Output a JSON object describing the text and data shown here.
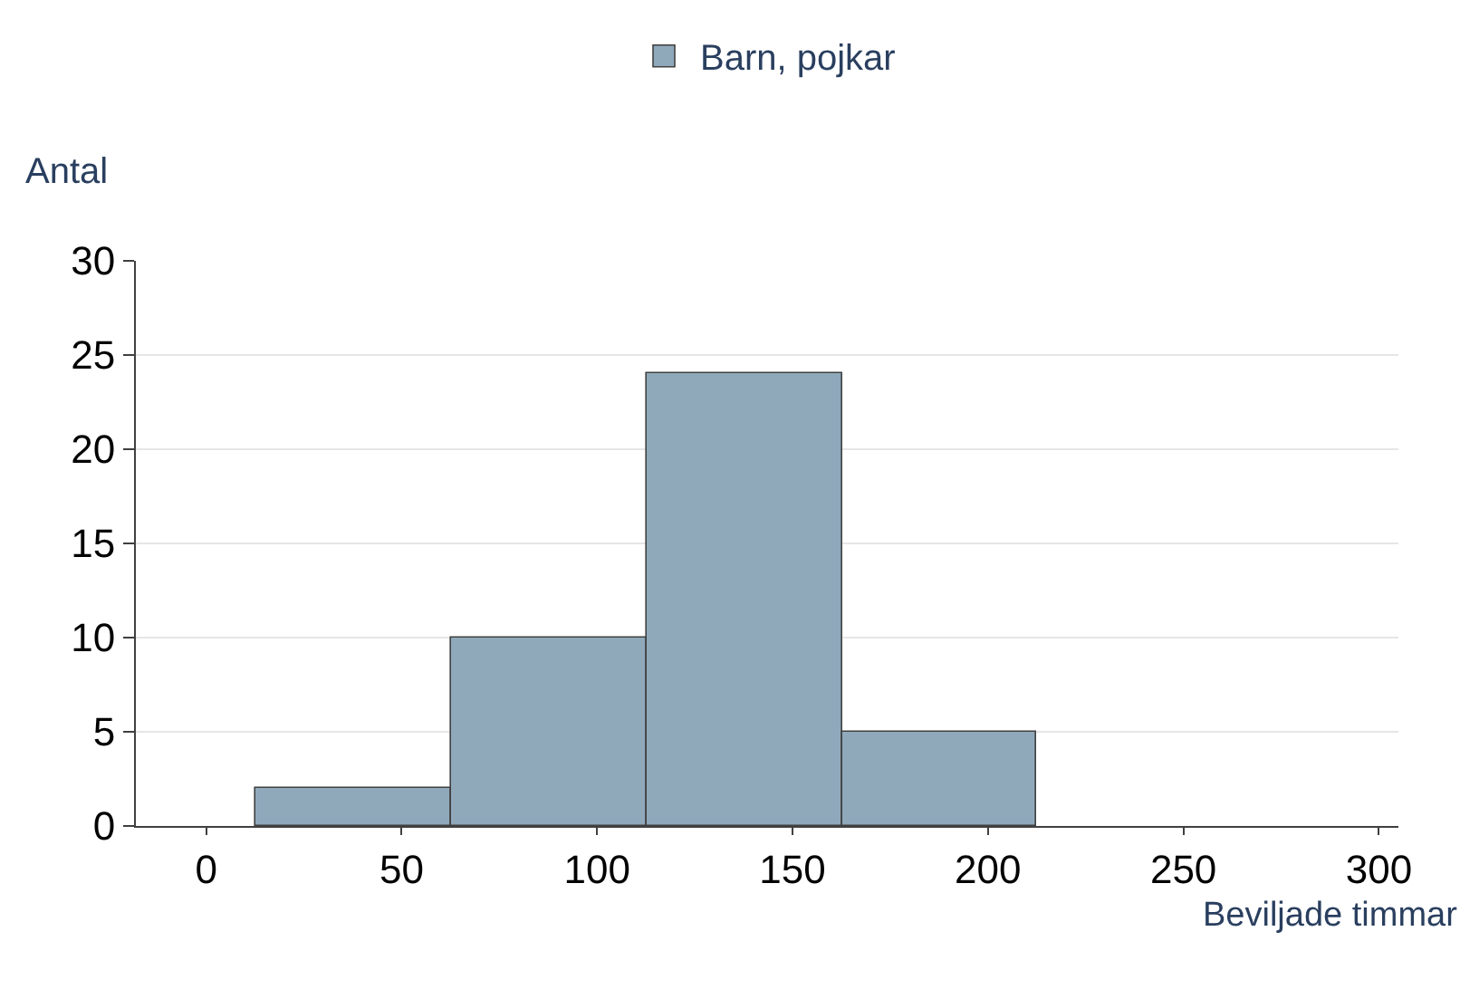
{
  "chart_data": {
    "type": "histogram",
    "xlabel": "Beviljade timmar",
    "ylabel": "Antal",
    "bins": [
      12.5,
      62.5,
      112.5,
      162.5,
      212.5
    ],
    "series": [
      {
        "name": "Barn, pojkar",
        "color": "#8fa9bb",
        "values": [
          2,
          10,
          24,
          5
        ]
      }
    ],
    "xlim": [
      -18,
      305
    ],
    "xticks": [
      0,
      50,
      100,
      150,
      200,
      250,
      300
    ],
    "ylim": [
      0,
      30
    ],
    "yticks": [
      0,
      5,
      10,
      15,
      20,
      25,
      30
    ],
    "grid": "y",
    "legend": "top"
  }
}
